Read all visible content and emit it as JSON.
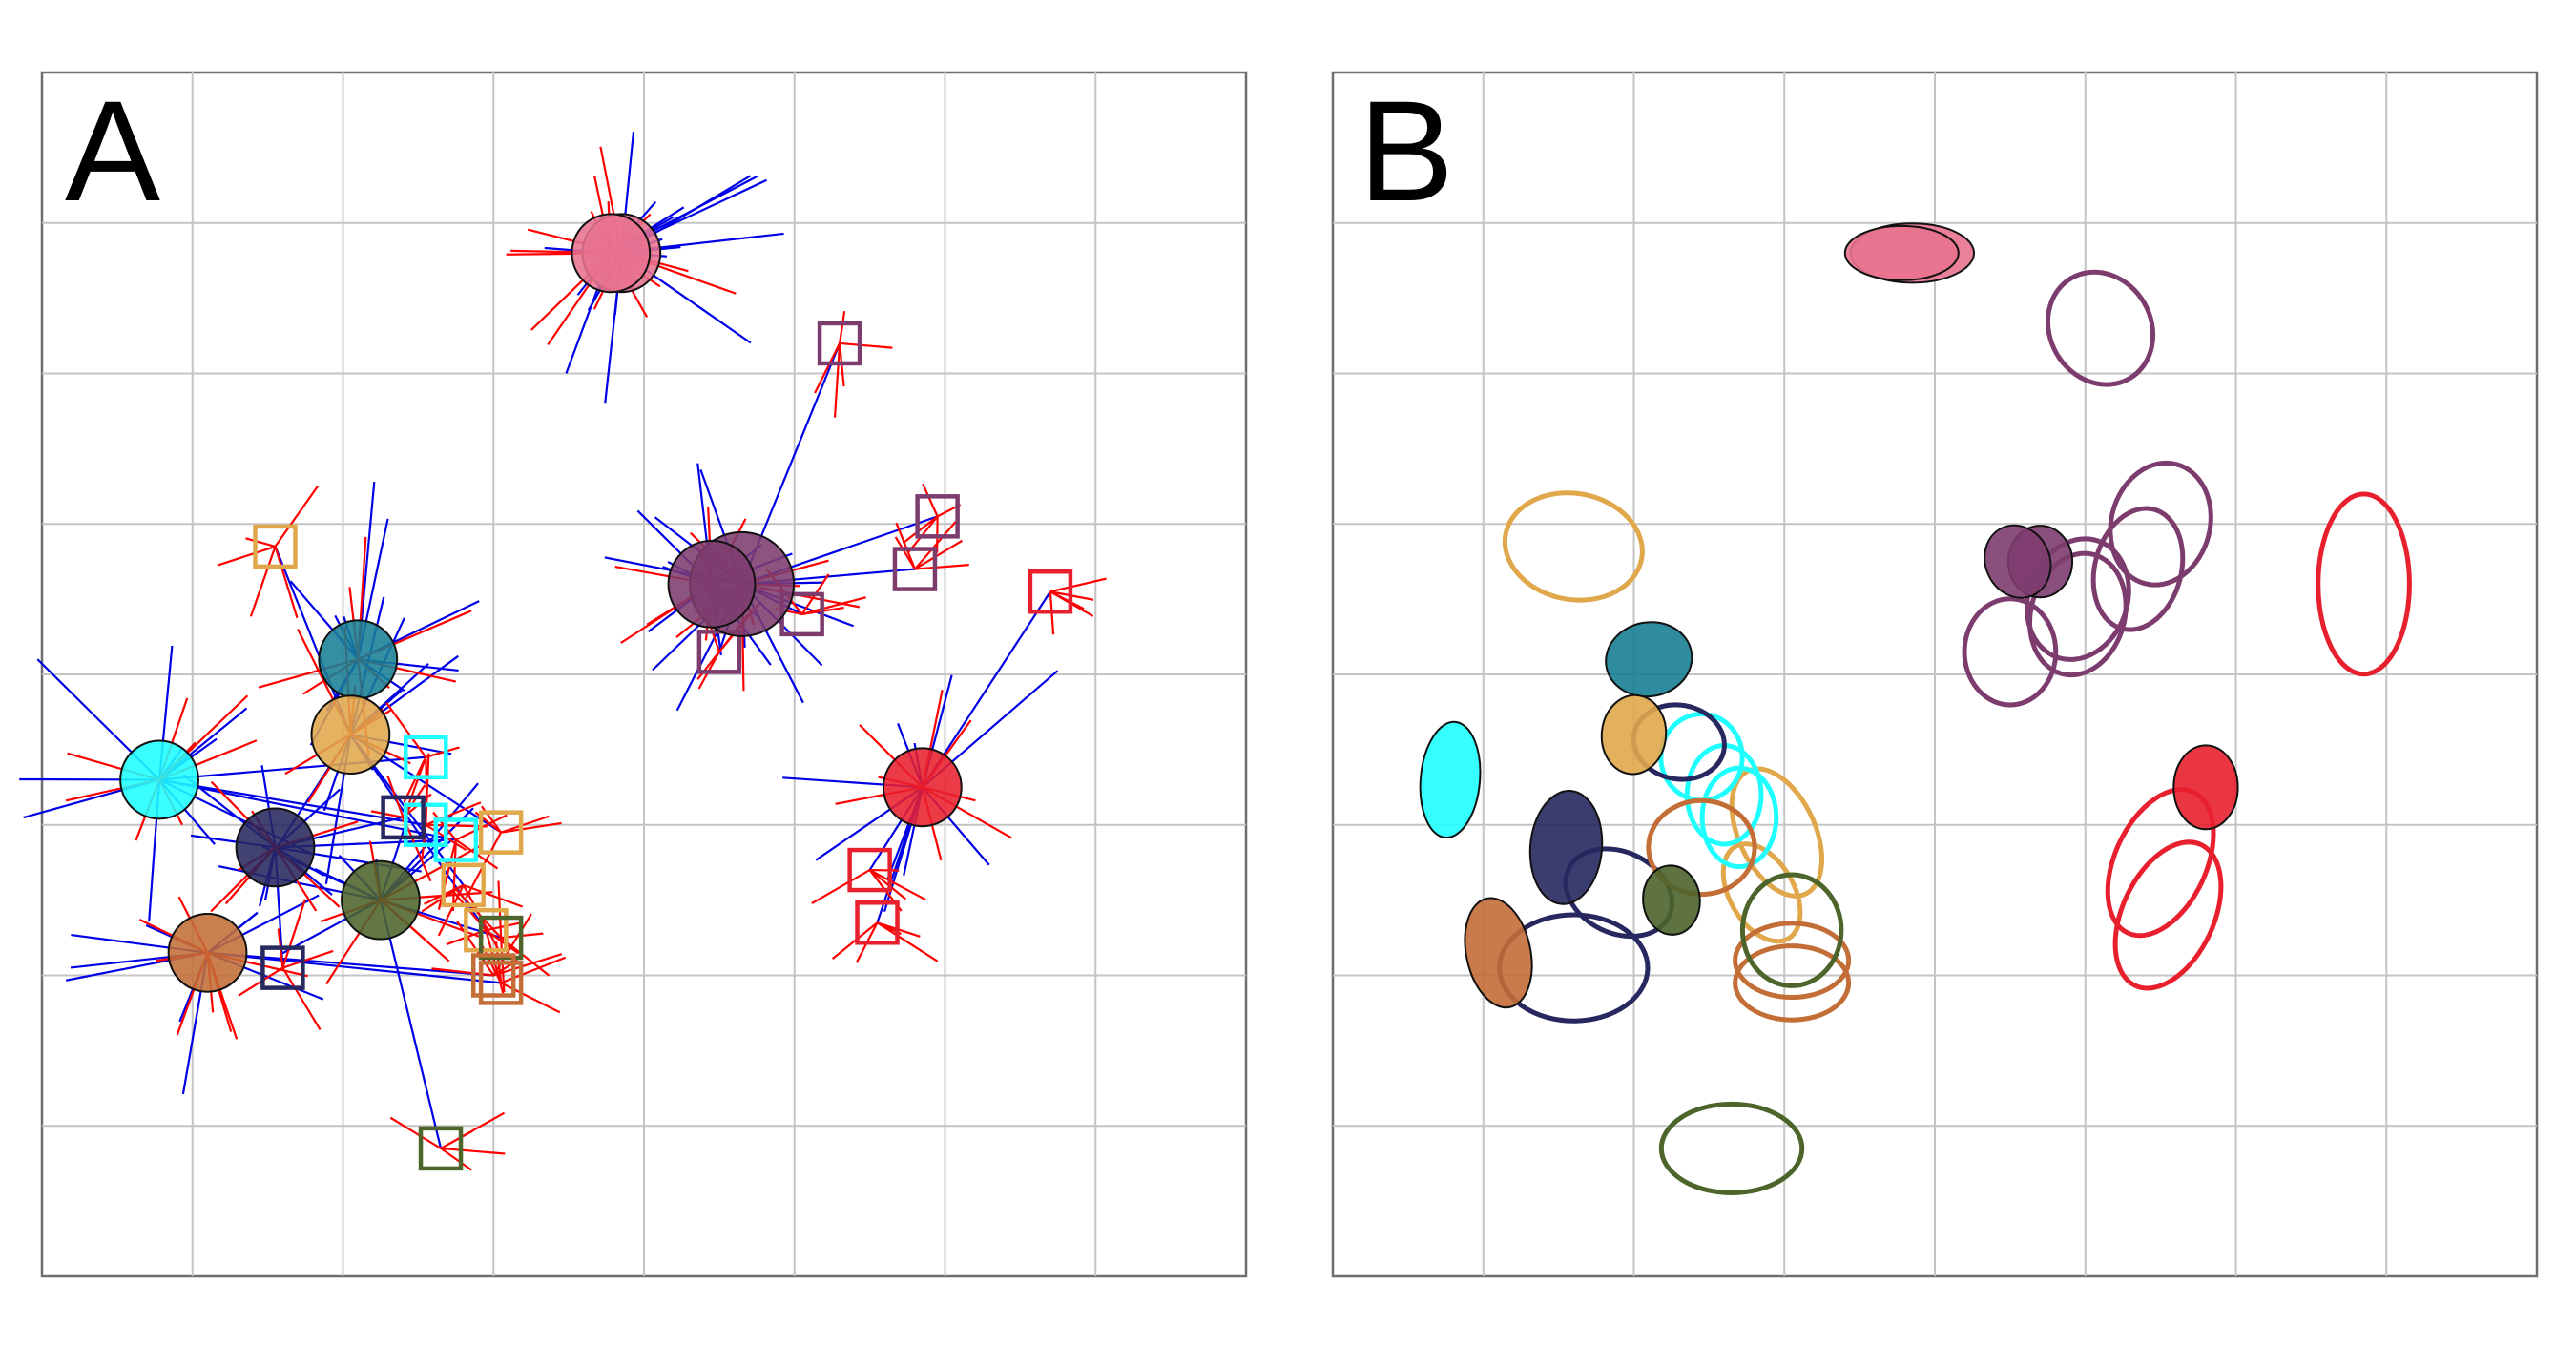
{
  "panels": [
    {
      "label": "A"
    },
    {
      "label": "B"
    }
  ],
  "chart_data": [
    {
      "type": "scatter",
      "panel": "A",
      "title": "",
      "xlabel": "",
      "ylabel": "",
      "xlim": [
        0,
        8
      ],
      "ylim": [
        0,
        8
      ],
      "grid": true,
      "colors": {
        "vector_blue": "#0000e6",
        "vector_red": "#ff0000",
        "group_pink": "#e8728f",
        "group_purple": "#7d3c6e",
        "group_red": "#e8202e",
        "group_teal": "#177f94",
        "group_gold": "#e0a74b",
        "group_cyan": "#1fffff",
        "group_navy": "#27285f",
        "group_olive": "#4d642b",
        "group_copper": "#c36d37"
      },
      "centroids": [
        {
          "group": "pink",
          "x": 3.85,
          "y": 6.8,
          "r": 0.36
        },
        {
          "group": "pink",
          "x": 3.78,
          "y": 6.8,
          "r": 0.36
        },
        {
          "group": "purple",
          "x": 4.65,
          "y": 4.6,
          "r": 0.48
        },
        {
          "group": "purple",
          "x": 4.45,
          "y": 4.6,
          "r": 0.4
        },
        {
          "group": "red",
          "x": 5.85,
          "y": 3.25,
          "r": 0.36
        },
        {
          "group": "teal",
          "x": 2.1,
          "y": 4.1,
          "r": 0.36
        },
        {
          "group": "gold",
          "x": 2.05,
          "y": 3.6,
          "r": 0.36
        },
        {
          "group": "cyan",
          "x": 0.78,
          "y": 3.3,
          "r": 0.36
        },
        {
          "group": "navy",
          "x": 1.55,
          "y": 2.85,
          "r": 0.36
        },
        {
          "group": "olive",
          "x": 2.25,
          "y": 2.5,
          "r": 0.36
        },
        {
          "group": "copper",
          "x": 1.1,
          "y": 2.15,
          "r": 0.36
        }
      ],
      "individuals": [
        {
          "group": "purple",
          "x": 5.3,
          "y": 6.2
        },
        {
          "group": "purple",
          "x": 5.95,
          "y": 5.05
        },
        {
          "group": "purple",
          "x": 5.8,
          "y": 4.7
        },
        {
          "group": "purple",
          "x": 5.05,
          "y": 4.4
        },
        {
          "group": "purple",
          "x": 4.5,
          "y": 4.15
        },
        {
          "group": "red",
          "x": 6.7,
          "y": 4.55
        },
        {
          "group": "red",
          "x": 5.5,
          "y": 2.7
        },
        {
          "group": "red",
          "x": 5.55,
          "y": 2.35
        },
        {
          "group": "gold",
          "x": 1.55,
          "y": 4.85
        },
        {
          "group": "gold",
          "x": 3.05,
          "y": 2.95
        },
        {
          "group": "gold",
          "x": 2.8,
          "y": 2.6
        },
        {
          "group": "gold",
          "x": 2.95,
          "y": 2.3
        },
        {
          "group": "cyan",
          "x": 2.55,
          "y": 3.45
        },
        {
          "group": "cyan",
          "x": 2.55,
          "y": 3.0
        },
        {
          "group": "cyan",
          "x": 2.75,
          "y": 2.9
        },
        {
          "group": "navy",
          "x": 1.6,
          "y": 2.05
        },
        {
          "group": "navy",
          "x": 2.4,
          "y": 3.05
        },
        {
          "group": "olive",
          "x": 2.65,
          "y": 0.85
        },
        {
          "group": "olive",
          "x": 3.05,
          "y": 2.25
        },
        {
          "group": "copper",
          "x": 3.0,
          "y": 2.0
        },
        {
          "group": "copper",
          "x": 3.05,
          "y": 1.95
        }
      ]
    },
    {
      "type": "scatter",
      "panel": "B",
      "title": "",
      "xlabel": "",
      "ylabel": "",
      "xlim": [
        0,
        8
      ],
      "ylim": [
        0,
        8
      ],
      "grid": true,
      "filled_ellipses": [
        {
          "group": "pink",
          "x": 3.85,
          "y": 6.8,
          "rx": 0.5,
          "ry": 0.24,
          "angle": 0
        },
        {
          "group": "pink",
          "x": 3.78,
          "y": 6.8,
          "rx": 0.46,
          "ry": 0.22,
          "angle": 0
        },
        {
          "group": "purple",
          "x": 4.7,
          "y": 4.75,
          "rx": 0.26,
          "ry": 0.29,
          "angle": 0
        },
        {
          "group": "purple",
          "x": 4.55,
          "y": 4.75,
          "rx": 0.26,
          "ry": 0.3,
          "angle": -25
        },
        {
          "group": "red",
          "x": 5.8,
          "y": 3.25,
          "rx": 0.26,
          "ry": 0.34,
          "angle": 0
        },
        {
          "group": "teal",
          "x": 2.1,
          "y": 4.1,
          "rx": 0.35,
          "ry": 0.3,
          "angle": -10
        },
        {
          "group": "gold",
          "x": 2.0,
          "y": 3.6,
          "rx": 0.26,
          "ry": 0.32,
          "angle": 5
        },
        {
          "group": "cyan",
          "x": 0.78,
          "y": 3.3,
          "rx": 0.24,
          "ry": 0.47,
          "angle": 5
        },
        {
          "group": "navy",
          "x": 1.55,
          "y": 2.85,
          "rx": 0.29,
          "ry": 0.46,
          "angle": 5
        },
        {
          "group": "olive",
          "x": 2.25,
          "y": 2.5,
          "rx": 0.23,
          "ry": 0.28,
          "angle": -5
        },
        {
          "group": "copper",
          "x": 1.1,
          "y": 2.15,
          "rx": 0.26,
          "ry": 0.45,
          "angle": -12
        }
      ],
      "outline_ellipses": [
        {
          "group": "purple",
          "x": 5.1,
          "y": 6.3,
          "rx": 0.41,
          "ry": 0.47,
          "angle": -30
        },
        {
          "group": "purple",
          "x": 5.5,
          "y": 5.0,
          "rx": 0.4,
          "ry": 0.5,
          "angle": 15
        },
        {
          "group": "purple",
          "x": 5.35,
          "y": 4.7,
          "rx": 0.35,
          "ry": 0.5,
          "angle": 15
        },
        {
          "group": "purple",
          "x": 4.95,
          "y": 4.5,
          "rx": 0.4,
          "ry": 0.5,
          "angle": 20
        },
        {
          "group": "purple",
          "x": 4.95,
          "y": 4.4,
          "rx": 0.38,
          "ry": 0.5,
          "angle": 15
        },
        {
          "group": "purple",
          "x": 4.5,
          "y": 4.15,
          "rx": 0.37,
          "ry": 0.43,
          "angle": 0
        },
        {
          "group": "red",
          "x": 6.85,
          "y": 4.6,
          "rx": 0.37,
          "ry": 0.73,
          "angle": 0
        },
        {
          "group": "red",
          "x": 5.5,
          "y": 2.75,
          "rx": 0.37,
          "ry": 0.63,
          "angle": 25
        },
        {
          "group": "red",
          "x": 5.55,
          "y": 2.4,
          "rx": 0.37,
          "ry": 0.63,
          "angle": 25
        },
        {
          "group": "gold",
          "x": 1.6,
          "y": 4.85,
          "rx": 0.56,
          "ry": 0.43,
          "angle": 10
        },
        {
          "group": "gold",
          "x": 2.95,
          "y": 2.95,
          "rx": 0.31,
          "ry": 0.55,
          "angle": -25
        },
        {
          "group": "gold",
          "x": 2.85,
          "y": 2.55,
          "rx": 0.26,
          "ry": 0.43,
          "angle": -30
        },
        {
          "group": "cyan",
          "x": 2.45,
          "y": 3.45,
          "rx": 0.33,
          "ry": 0.35,
          "angle": 0
        },
        {
          "group": "cyan",
          "x": 2.6,
          "y": 3.2,
          "rx": 0.3,
          "ry": 0.4,
          "angle": 0
        },
        {
          "group": "cyan",
          "x": 2.7,
          "y": 3.05,
          "rx": 0.3,
          "ry": 0.4,
          "angle": 0
        },
        {
          "group": "navy",
          "x": 2.3,
          "y": 3.55,
          "rx": 0.37,
          "ry": 0.3,
          "angle": 10
        },
        {
          "group": "navy",
          "x": 1.9,
          "y": 2.55,
          "rx": 0.45,
          "ry": 0.33,
          "angle": 25
        },
        {
          "group": "navy",
          "x": 1.6,
          "y": 2.05,
          "rx": 0.6,
          "ry": 0.43,
          "angle": 0
        },
        {
          "group": "copper",
          "x": 2.45,
          "y": 2.85,
          "rx": 0.43,
          "ry": 0.38,
          "angle": 0
        },
        {
          "group": "copper",
          "x": 3.05,
          "y": 2.1,
          "rx": 0.46,
          "ry": 0.3,
          "angle": 0
        },
        {
          "group": "copper",
          "x": 3.05,
          "y": 1.95,
          "rx": 0.46,
          "ry": 0.3,
          "angle": 0
        },
        {
          "group": "olive",
          "x": 3.05,
          "y": 2.3,
          "rx": 0.4,
          "ry": 0.45,
          "angle": 0
        },
        {
          "group": "olive",
          "x": 2.65,
          "y": 0.85,
          "rx": 0.57,
          "ry": 0.36,
          "angle": 0
        }
      ]
    }
  ]
}
